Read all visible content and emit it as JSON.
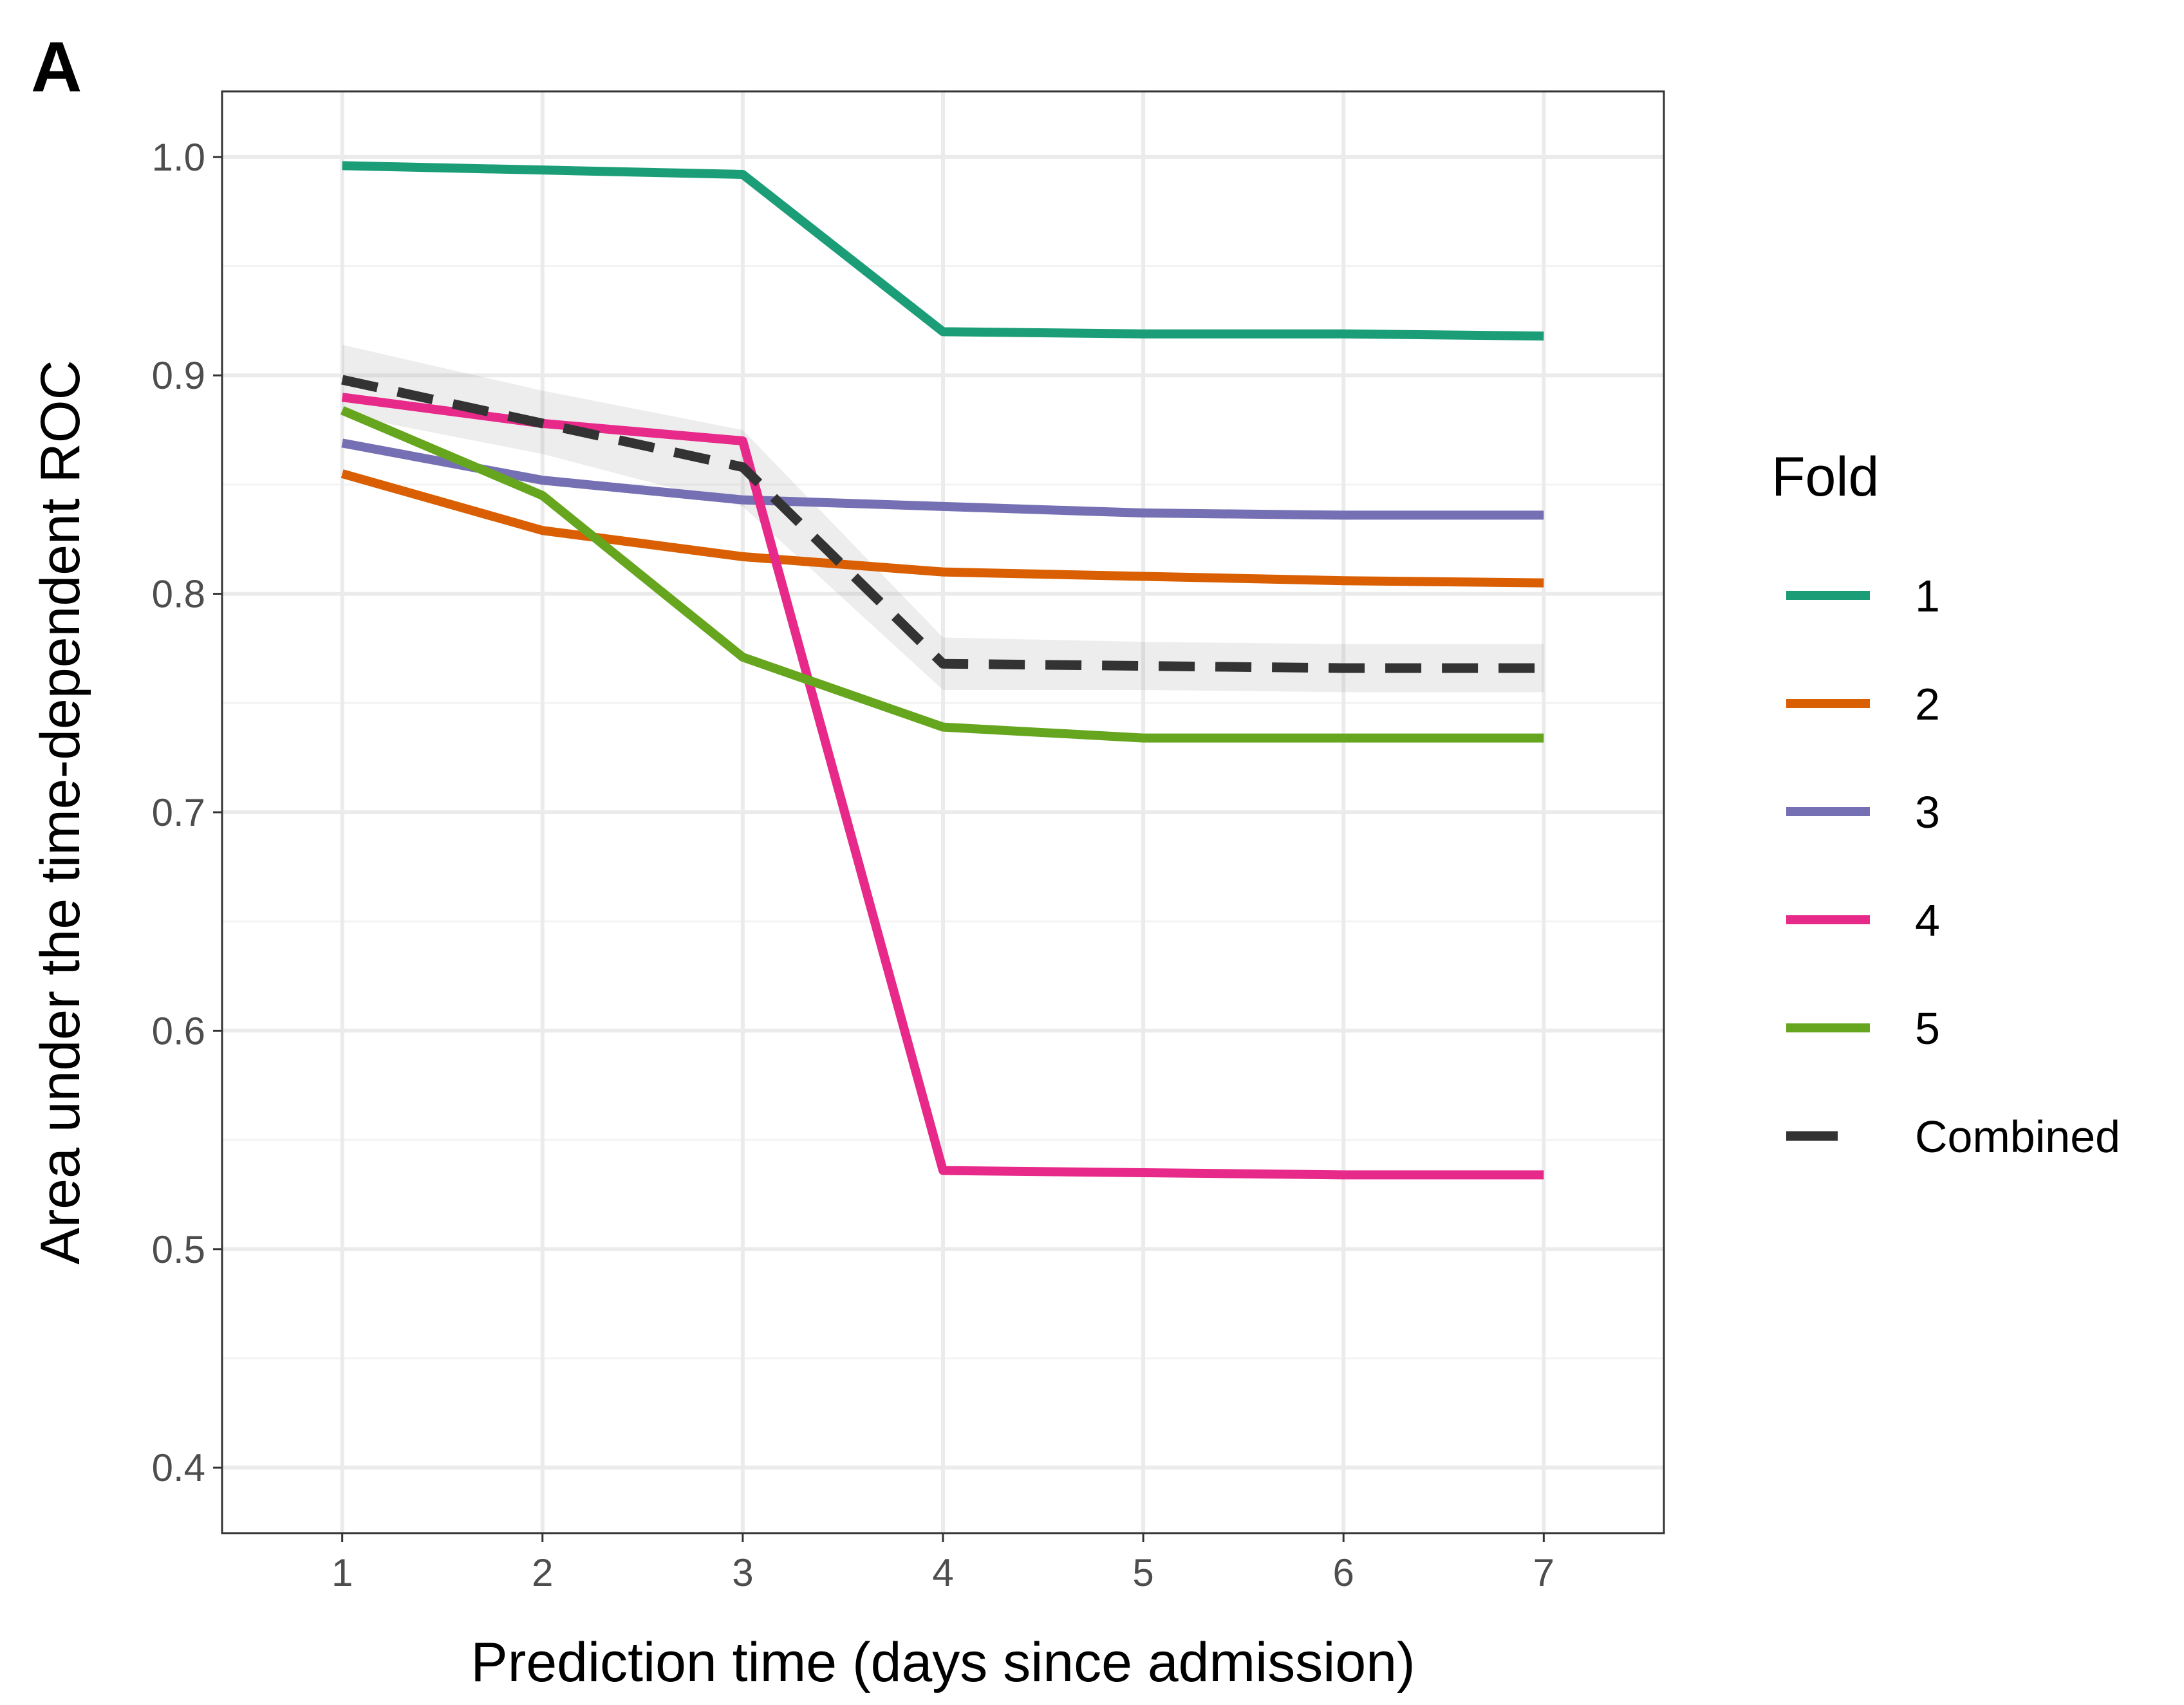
{
  "panel_tag": "A",
  "chart_data": {
    "type": "line",
    "title": "",
    "xlabel": "Prediction time (days since admission)",
    "ylabel": "Area under the time-dependent ROC",
    "x": [
      1,
      2,
      3,
      4,
      5,
      6,
      7
    ],
    "xlim": [
      0.4,
      7.6
    ],
    "ylim": [
      0.37,
      1.03
    ],
    "xticks": [
      "1",
      "2",
      "3",
      "4",
      "5",
      "6",
      "7"
    ],
    "yticks": [
      "0.4",
      "0.5",
      "0.6",
      "0.7",
      "0.8",
      "0.9",
      "1.0"
    ],
    "grid": true,
    "legend_title": "Fold",
    "legend_position": "right",
    "series": [
      {
        "name": "1",
        "color": "#1b9e77",
        "dash": "solid",
        "values": [
          0.996,
          0.994,
          0.992,
          0.92,
          0.919,
          0.919,
          0.918
        ]
      },
      {
        "name": "2",
        "color": "#d95f02",
        "dash": "solid",
        "values": [
          0.855,
          0.829,
          0.817,
          0.81,
          0.808,
          0.806,
          0.805
        ]
      },
      {
        "name": "3",
        "color": "#7570b3",
        "dash": "solid",
        "values": [
          0.869,
          0.852,
          0.843,
          0.84,
          0.837,
          0.836,
          0.836
        ]
      },
      {
        "name": "4",
        "color": "#e7298a",
        "dash": "solid",
        "values": [
          0.89,
          0.878,
          0.87,
          0.536,
          0.535,
          0.534,
          0.534
        ]
      },
      {
        "name": "5",
        "color": "#66a61e",
        "dash": "solid",
        "values": [
          0.884,
          0.845,
          0.771,
          0.739,
          0.734,
          0.734,
          0.734
        ]
      },
      {
        "name": "Combined",
        "color": "#333333",
        "dash": "dashed",
        "values": [
          0.898,
          0.878,
          0.858,
          0.768,
          0.767,
          0.766,
          0.766
        ],
        "ci_lower": [
          0.882,
          0.864,
          0.84,
          0.756,
          0.756,
          0.755,
          0.755
        ],
        "ci_upper": [
          0.914,
          0.893,
          0.875,
          0.78,
          0.778,
          0.777,
          0.777
        ]
      }
    ]
  }
}
